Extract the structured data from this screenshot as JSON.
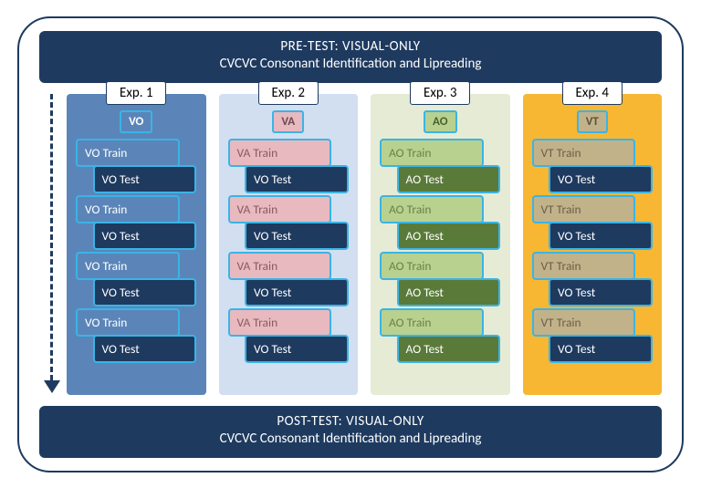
{
  "frame": {
    "border_color": "#1e3a5f",
    "border_radius": 36
  },
  "pre_test": {
    "line1": "PRE-TEST: VISUAL-ONLY",
    "line2": "CVCVC Consonant Identification and Lipreading",
    "bg": "#1e3a5f",
    "fg": "#ffffff"
  },
  "post_test": {
    "line1": "POST-TEST: VISUAL-ONLY",
    "line2": "CVCVC Consonant Identification and Lipreading",
    "bg": "#1e3a5f",
    "fg": "#ffffff"
  },
  "arrow": {
    "color": "#1e3a5f",
    "style": "dashed"
  },
  "outline_color": "#3ab4e6",
  "experiments": [
    {
      "label": "Exp. 1",
      "col_bg": "#5b85b8",
      "tag": {
        "text": "VO",
        "bg": "#5b85b8",
        "fg": "#ffffff"
      },
      "train": {
        "text": "VO Train",
        "bg": "#5b85b8",
        "fg": "#ffffff"
      },
      "test": {
        "text": "VO Test",
        "bg": "#1e3a5f",
        "fg": "#ffffff"
      }
    },
    {
      "label": "Exp. 2",
      "col_bg": "#d2dff0",
      "tag": {
        "text": "VA",
        "bg": "#e9b9c0",
        "fg": "#6a4a50"
      },
      "train": {
        "text": "VA Train",
        "bg": "#e9b9c0",
        "fg": "#8a5a60"
      },
      "test": {
        "text": "VO Test",
        "bg": "#1e3a5f",
        "fg": "#ffffff"
      }
    },
    {
      "label": "Exp. 3",
      "col_bg": "#e6ebd5",
      "tag": {
        "text": "AO",
        "bg": "#b8d18f",
        "fg": "#4a6030"
      },
      "train": {
        "text": "AO Train",
        "bg": "#b8d18f",
        "fg": "#6a8048"
      },
      "test": {
        "text": "AO Test",
        "bg": "#5a7a3a",
        "fg": "#ffffff"
      }
    },
    {
      "label": "Exp. 4",
      "col_bg": "#f7b733",
      "tag": {
        "text": "VT",
        "bg": "#c2b28a",
        "fg": "#5a5040"
      },
      "train": {
        "text": "VT Train",
        "bg": "#c2b28a",
        "fg": "#6a6048"
      },
      "test": {
        "text": "VO Test",
        "bg": "#1e3a5f",
        "fg": "#ffffff"
      }
    }
  ],
  "pairs_per_column": 4
}
